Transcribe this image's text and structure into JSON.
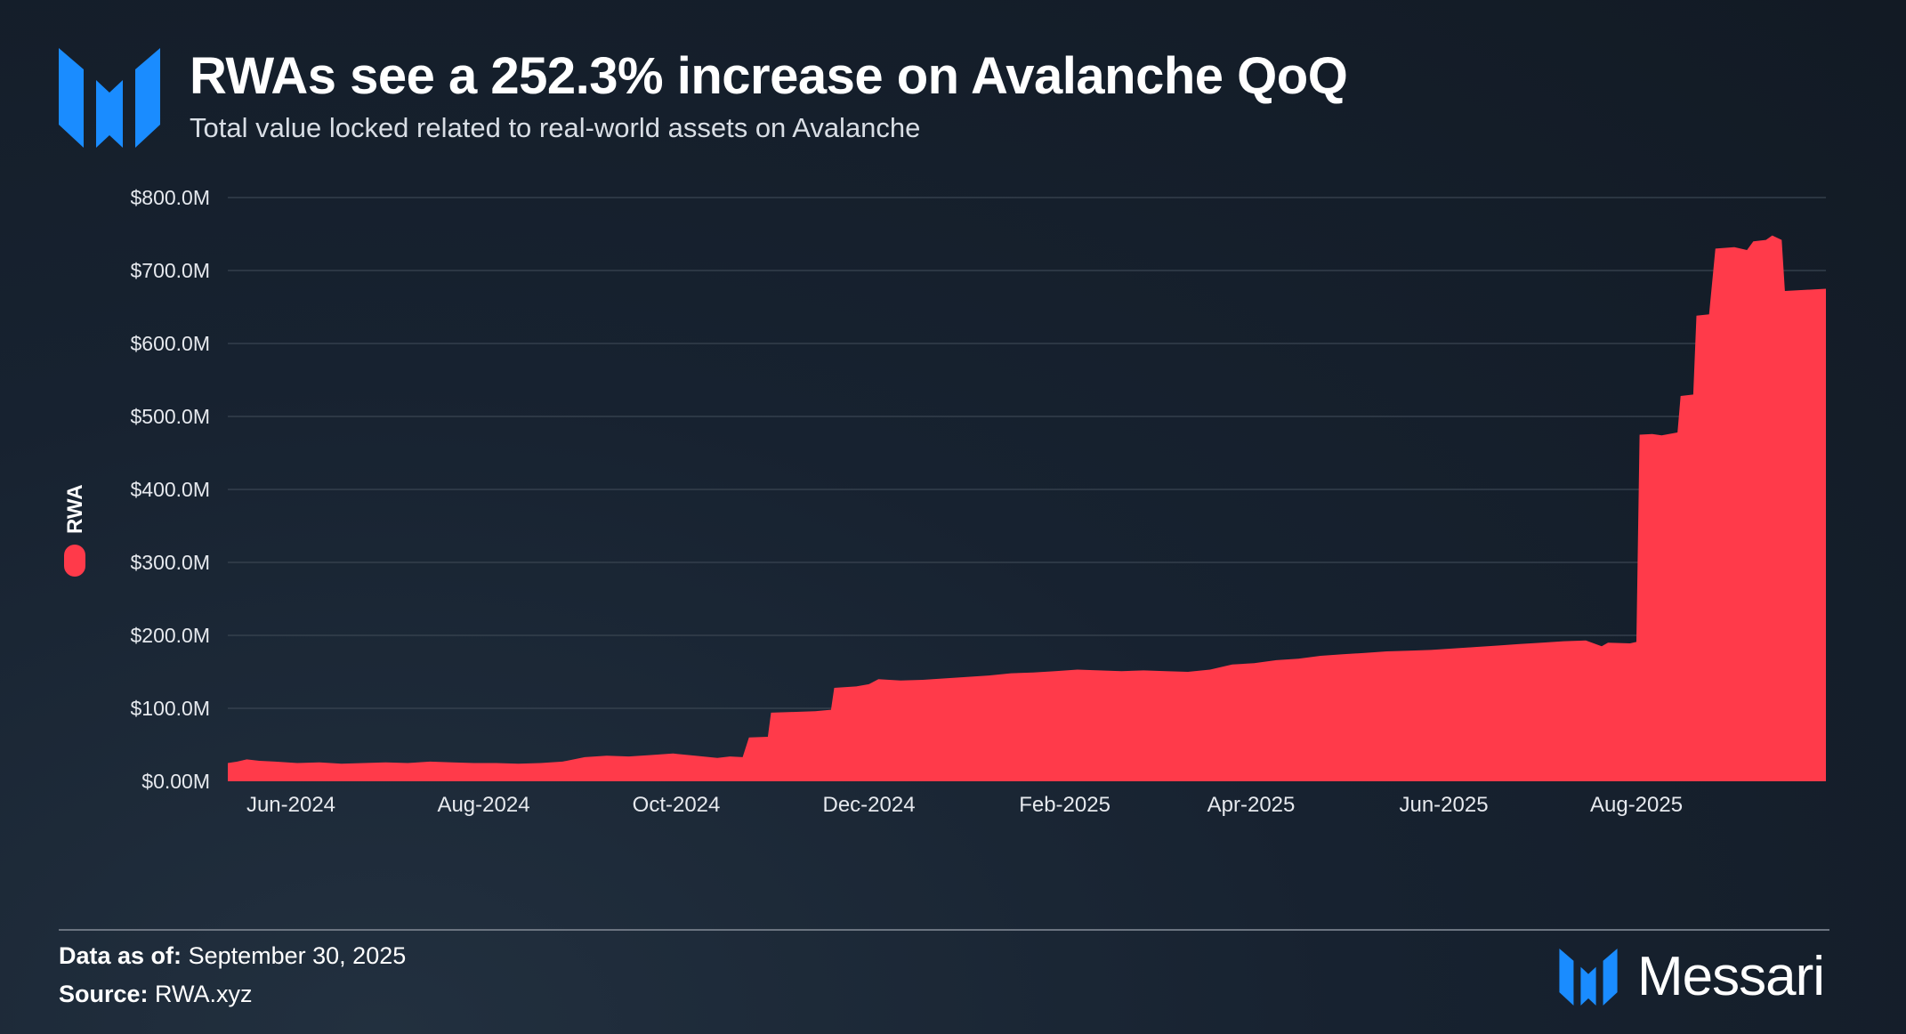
{
  "header": {
    "title": "RWAs see a 252.3% increase on Avalanche QoQ",
    "subtitle": "Total value locked related to real-world assets on Avalanche",
    "logo_icon": "messari-logo-icon"
  },
  "colors": {
    "background": "#172230",
    "series": "#ff3a4a",
    "brand_blue": "#1a8cff",
    "grid": "#3a4552"
  },
  "footer": {
    "asof_label": "Data as of:",
    "asof_value": "September 30, 2025",
    "source_label": "Source:",
    "source_value": "RWA.xyz",
    "brand": "Messari"
  },
  "chart_data": {
    "type": "area",
    "title": "RWAs see a 252.3% increase on Avalanche QoQ",
    "subtitle": "Total value locked related to real-world assets on Avalanche",
    "xlabel": "",
    "ylabel": "",
    "legend": {
      "position": "left",
      "entries": [
        "RWA"
      ]
    },
    "grid": true,
    "ylim": [
      0,
      800
    ],
    "y_ticks": [
      "$0.00M",
      "$100.0M",
      "$200.0M",
      "$300.0M",
      "$400.0M",
      "$500.0M",
      "$600.0M",
      "$700.0M",
      "$800.0M"
    ],
    "y_tick_values": [
      0,
      100,
      200,
      300,
      400,
      500,
      600,
      700,
      800
    ],
    "x_ticks": [
      "Jun-2024",
      "Aug-2024",
      "Oct-2024",
      "Dec-2024",
      "Feb-2025",
      "Apr-2025",
      "Jun-2025",
      "Aug-2025"
    ],
    "x_tick_dates": [
      "2024-06-01",
      "2024-08-01",
      "2024-10-01",
      "2024-12-01",
      "2025-02-01",
      "2025-04-01",
      "2025-06-01",
      "2025-08-01"
    ],
    "xlim": [
      "2024-05-12",
      "2025-09-30"
    ],
    "series": [
      {
        "name": "RWA",
        "color": "#ff3a4a",
        "points": [
          [
            "2024-05-12",
            25
          ],
          [
            "2024-05-15",
            27
          ],
          [
            "2024-05-18",
            30
          ],
          [
            "2024-05-22",
            28
          ],
          [
            "2024-05-27",
            27
          ],
          [
            "2024-06-03",
            25
          ],
          [
            "2024-06-10",
            26
          ],
          [
            "2024-06-17",
            24
          ],
          [
            "2024-06-24",
            25
          ],
          [
            "2024-07-01",
            26
          ],
          [
            "2024-07-08",
            25
          ],
          [
            "2024-07-15",
            27
          ],
          [
            "2024-07-22",
            26
          ],
          [
            "2024-07-29",
            25
          ],
          [
            "2024-08-05",
            25
          ],
          [
            "2024-08-12",
            24
          ],
          [
            "2024-08-19",
            25
          ],
          [
            "2024-08-26",
            27
          ],
          [
            "2024-09-02",
            33
          ],
          [
            "2024-09-09",
            35
          ],
          [
            "2024-09-16",
            34
          ],
          [
            "2024-09-23",
            36
          ],
          [
            "2024-09-30",
            38
          ],
          [
            "2024-10-07",
            35
          ],
          [
            "2024-10-14",
            32
          ],
          [
            "2024-10-18",
            34
          ],
          [
            "2024-10-22",
            33
          ],
          [
            "2024-10-24",
            60
          ],
          [
            "2024-10-30",
            61
          ],
          [
            "2024-10-31",
            94
          ],
          [
            "2024-11-07",
            95
          ],
          [
            "2024-11-14",
            96
          ],
          [
            "2024-11-19",
            98
          ],
          [
            "2024-11-20",
            128
          ],
          [
            "2024-11-27",
            130
          ],
          [
            "2024-12-01",
            133
          ],
          [
            "2024-12-04",
            140
          ],
          [
            "2024-12-11",
            138
          ],
          [
            "2024-12-18",
            139
          ],
          [
            "2024-12-25",
            141
          ],
          [
            "2025-01-01",
            143
          ],
          [
            "2025-01-08",
            145
          ],
          [
            "2025-01-15",
            148
          ],
          [
            "2025-01-22",
            149
          ],
          [
            "2025-01-29",
            151
          ],
          [
            "2025-02-05",
            153
          ],
          [
            "2025-02-12",
            152
          ],
          [
            "2025-02-19",
            151
          ],
          [
            "2025-02-26",
            152
          ],
          [
            "2025-03-05",
            151
          ],
          [
            "2025-03-12",
            150
          ],
          [
            "2025-03-19",
            153
          ],
          [
            "2025-03-26",
            160
          ],
          [
            "2025-04-02",
            162
          ],
          [
            "2025-04-09",
            166
          ],
          [
            "2025-04-16",
            168
          ],
          [
            "2025-04-23",
            172
          ],
          [
            "2025-04-30",
            174
          ],
          [
            "2025-05-07",
            176
          ],
          [
            "2025-05-14",
            178
          ],
          [
            "2025-05-21",
            179
          ],
          [
            "2025-05-28",
            180
          ],
          [
            "2025-06-04",
            182
          ],
          [
            "2025-06-11",
            184
          ],
          [
            "2025-06-18",
            186
          ],
          [
            "2025-06-25",
            188
          ],
          [
            "2025-07-02",
            190
          ],
          [
            "2025-07-09",
            192
          ],
          [
            "2025-07-16",
            193
          ],
          [
            "2025-07-21",
            185
          ],
          [
            "2025-07-23",
            190
          ],
          [
            "2025-07-30",
            189
          ],
          [
            "2025-08-01",
            191
          ],
          [
            "2025-08-02",
            475
          ],
          [
            "2025-08-06",
            476
          ],
          [
            "2025-08-09",
            474
          ],
          [
            "2025-08-14",
            478
          ],
          [
            "2025-08-15",
            528
          ],
          [
            "2025-08-19",
            530
          ],
          [
            "2025-08-20",
            638
          ],
          [
            "2025-08-24",
            640
          ],
          [
            "2025-08-26",
            730
          ],
          [
            "2025-09-01",
            732
          ],
          [
            "2025-09-05",
            728
          ],
          [
            "2025-09-07",
            740
          ],
          [
            "2025-09-11",
            742
          ],
          [
            "2025-09-13",
            748
          ],
          [
            "2025-09-16",
            742
          ],
          [
            "2025-09-17",
            672
          ],
          [
            "2025-09-30",
            675
          ]
        ]
      }
    ]
  }
}
